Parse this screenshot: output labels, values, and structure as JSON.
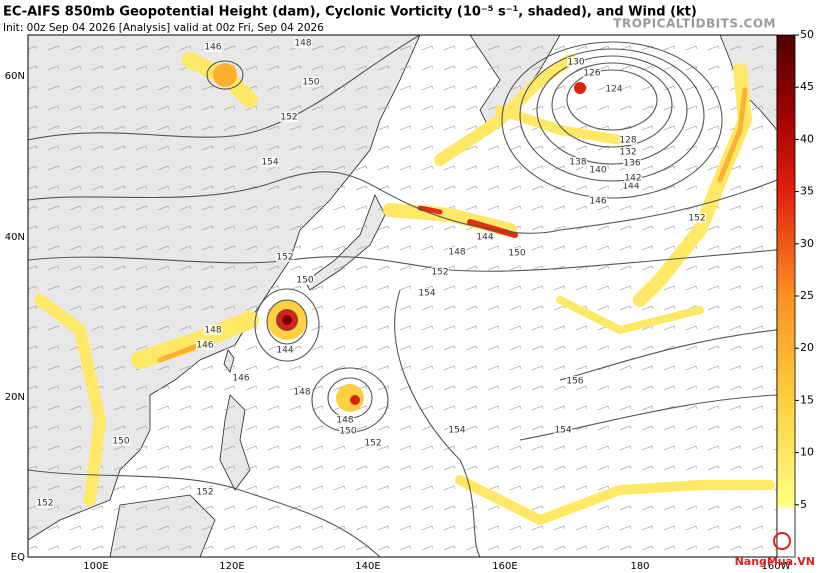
{
  "header": {
    "title": "EC-AIFS 850mb Geopotential Height (dam), Cyclonic Vorticity (10⁻⁵ s⁻¹, shaded), and Wind (kt)",
    "init": "Init: 00z Sep 04 2026   [Analysis]   valid at 00z Fri, Sep 04 2026",
    "site": "TROPICALTIDBITS.COM"
  },
  "latitude_labels": [
    "60N",
    "40N",
    "20N",
    "EQ"
  ],
  "longitude_labels": [
    "100E",
    "120E",
    "140E",
    "160E",
    "180",
    "160W"
  ],
  "contour_labels": [
    146,
    148,
    150,
    152,
    154,
    152,
    150,
    148,
    146,
    146,
    144,
    148,
    148,
    150,
    152,
    154,
    154,
    156,
    154,
    152,
    148,
    144,
    150,
    152,
    146,
    144,
    142,
    140,
    138,
    136,
    132,
    128,
    124,
    126,
    130,
    150,
    152,
    152
  ],
  "colorbar": {
    "range": [
      0,
      50
    ],
    "ticks": [
      5,
      10,
      15,
      20,
      25,
      30,
      35,
      40,
      45,
      50
    ]
  },
  "watermark": "NangMua.VN"
}
